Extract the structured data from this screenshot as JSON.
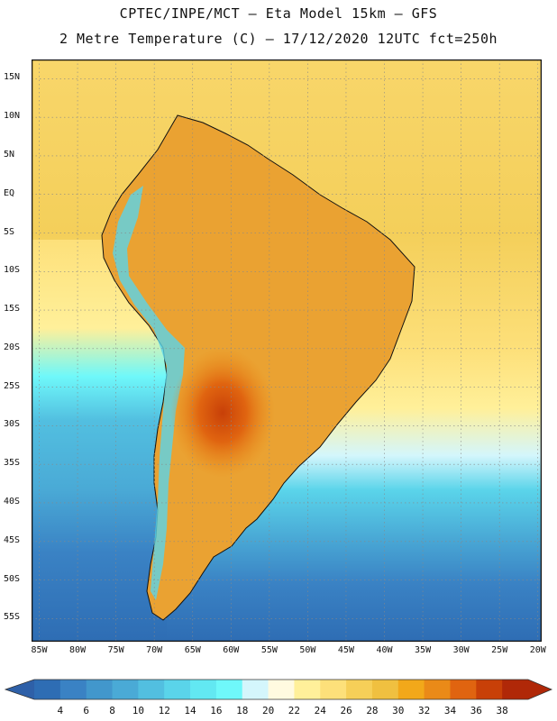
{
  "header": {
    "line1": "CPTEC/INPE/MCT  –   Eta Model 15km  – GFS",
    "line2": "2 Metre Temperature (C) – 17/12/2020 12UTC fct=250h"
  },
  "map": {
    "lat_ticks": [
      "15N",
      "10N",
      "5N",
      "EQ",
      "5S",
      "10S",
      "15S",
      "20S",
      "25S",
      "30S",
      "35S",
      "40S",
      "45S",
      "50S",
      "55S"
    ],
    "lat_values": [
      15,
      10,
      5,
      0,
      -5,
      -10,
      -15,
      -20,
      -25,
      -30,
      -35,
      -40,
      -45,
      -50,
      -55
    ],
    "lon_ticks": [
      "85W",
      "80W",
      "75W",
      "70W",
      "65W",
      "60W",
      "55W",
      "50W",
      "45W",
      "40W",
      "35W",
      "30W",
      "25W",
      "20W"
    ],
    "lon_values": [
      -85,
      -80,
      -75,
      -70,
      -65,
      -60,
      -55,
      -50,
      -45,
      -40,
      -35,
      -30,
      -25,
      -20
    ],
    "lat_range": [
      -58,
      17.5
    ],
    "lon_range": [
      -86,
      -19.5
    ]
  },
  "colorbar": {
    "labels": [
      "4",
      "6",
      "8",
      "10",
      "12",
      "14",
      "16",
      "18",
      "20",
      "22",
      "24",
      "26",
      "28",
      "30",
      "32",
      "34",
      "36",
      "38"
    ],
    "colors": [
      "#2e6db4",
      "#3a82c4",
      "#4297cc",
      "#4aaad6",
      "#52bfe0",
      "#5ad4ea",
      "#62e8f2",
      "#6ff8fa",
      "#d4f6fc",
      "#fffae0",
      "#fff09a",
      "#fde07a",
      "#f6cf58",
      "#f0c040",
      "#f2a81a",
      "#ea8a18",
      "#e06410",
      "#c84008",
      "#b02808"
    ],
    "left_arrow_color": "#2e60a8",
    "right_arrow_color": "#b02808"
  }
}
